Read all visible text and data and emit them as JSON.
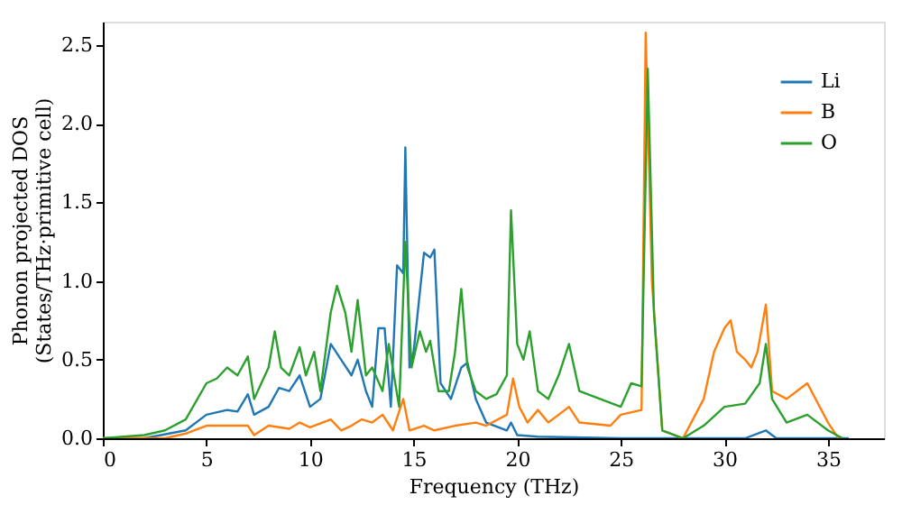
{
  "chart_data": {
    "type": "line",
    "xlabel": "Frequency (THz)",
    "ylabel": "Phonon projected DOS\n(States/THz·primitive cell)",
    "xlim": [
      0,
      37.7
    ],
    "ylim": [
      0,
      2.65
    ],
    "xticks": [
      0,
      5,
      10,
      15,
      20,
      25,
      30,
      35
    ],
    "yticks": [
      {
        "value": 0,
        "label": "0.0"
      },
      {
        "value": 0.5,
        "label": "0.5"
      },
      {
        "value": 1,
        "label": "1.0"
      },
      {
        "value": 1.5,
        "label": "1.5"
      },
      {
        "value": 2,
        "label": "2.0"
      },
      {
        "value": 2.5,
        "label": "2.5"
      }
    ],
    "legend": "top right",
    "grid": false,
    "series": [
      {
        "name": "Li",
        "color": "#1f77b4",
        "x": [
          0,
          2,
          4,
          5,
          6,
          6.5,
          7,
          7.3,
          8,
          8.5,
          9,
          9.5,
          10,
          10.5,
          11,
          11.5,
          12,
          12.3,
          12.7,
          13,
          13.3,
          13.6,
          13.9,
          14.2,
          14.5,
          14.6,
          14.8,
          15,
          15.5,
          15.8,
          16,
          16.3,
          16.8,
          17.3,
          17.6,
          18,
          18.5,
          19.5,
          19.7,
          20,
          21,
          25,
          31,
          32,
          32.5,
          36
        ],
        "values": [
          0,
          0,
          0.05,
          0.15,
          0.18,
          0.17,
          0.28,
          0.15,
          0.2,
          0.32,
          0.3,
          0.4,
          0.2,
          0.25,
          0.6,
          0.5,
          0.4,
          0.5,
          0.3,
          0.2,
          0.7,
          0.7,
          0.2,
          1.1,
          1.05,
          1.85,
          0.45,
          0.55,
          1.18,
          1.15,
          1.2,
          0.35,
          0.25,
          0.45,
          0.48,
          0.25,
          0.1,
          0.05,
          0.1,
          0.02,
          0.01,
          0,
          0,
          0.05,
          0,
          0
        ]
      },
      {
        "name": "B",
        "color": "#ff7f0e",
        "x": [
          0,
          3,
          4,
          5,
          6,
          7,
          7.3,
          8,
          9,
          9.5,
          10,
          11,
          11.5,
          12,
          12.5,
          13,
          13.5,
          14,
          14.5,
          14.8,
          15.5,
          16,
          17,
          18,
          18.5,
          19.5,
          19.8,
          20.1,
          20.5,
          21,
          21.5,
          22,
          22.5,
          23,
          24.5,
          25,
          26,
          26.2,
          26.5,
          27,
          28,
          29,
          29.5,
          30,
          30.3,
          30.6,
          31,
          31.3,
          31.6,
          32,
          32.3,
          33,
          34,
          35,
          35.5
        ],
        "values": [
          0,
          0,
          0.03,
          0.08,
          0.08,
          0.08,
          0.02,
          0.08,
          0.06,
          0.1,
          0.07,
          0.12,
          0.05,
          0.08,
          0.12,
          0.1,
          0.15,
          0.05,
          0.25,
          0.05,
          0.08,
          0.05,
          0.08,
          0.1,
          0.08,
          0.15,
          0.38,
          0.2,
          0.1,
          0.18,
          0.1,
          0.15,
          0.2,
          0.1,
          0.08,
          0.15,
          0.18,
          2.58,
          1.0,
          0.05,
          0,
          0.25,
          0.55,
          0.7,
          0.75,
          0.55,
          0.5,
          0.45,
          0.55,
          0.85,
          0.3,
          0.25,
          0.35,
          0.1,
          0
        ]
      },
      {
        "name": "O",
        "color": "#2ca02c",
        "x": [
          0,
          2,
          3,
          4,
          5,
          5.5,
          6,
          6.5,
          7,
          7.3,
          8,
          8.3,
          8.6,
          9,
          9.5,
          9.8,
          10.2,
          10.5,
          11,
          11.3,
          11.7,
          12,
          12.3,
          12.7,
          13,
          13.5,
          13.8,
          14.3,
          14.6,
          14.9,
          15.3,
          15.6,
          15.8,
          16.2,
          16.7,
          17,
          17.3,
          17.6,
          18,
          18.5,
          19,
          19.5,
          19.7,
          20,
          20.3,
          20.6,
          21,
          21.5,
          22,
          22.5,
          23,
          24,
          25,
          25.5,
          26,
          26.3,
          26.6,
          27,
          28,
          29,
          30,
          31,
          31.7,
          32,
          32.3,
          33,
          34,
          35,
          35.7
        ],
        "values": [
          0,
          0.02,
          0.05,
          0.12,
          0.35,
          0.38,
          0.45,
          0.4,
          0.52,
          0.25,
          0.45,
          0.68,
          0.45,
          0.4,
          0.58,
          0.4,
          0.55,
          0.3,
          0.8,
          0.97,
          0.8,
          0.55,
          0.88,
          0.4,
          0.45,
          0.3,
          0.6,
          0.2,
          1.25,
          0.45,
          0.68,
          0.55,
          0.62,
          0.3,
          0.3,
          0.55,
          0.95,
          0.45,
          0.3,
          0.25,
          0.28,
          0.4,
          1.45,
          0.6,
          0.5,
          0.68,
          0.3,
          0.25,
          0.4,
          0.6,
          0.3,
          0.25,
          0.2,
          0.35,
          0.33,
          2.35,
          0.8,
          0.05,
          0,
          0.08,
          0.2,
          0.22,
          0.35,
          0.6,
          0.25,
          0.1,
          0.15,
          0.05,
          0
        ]
      }
    ]
  }
}
